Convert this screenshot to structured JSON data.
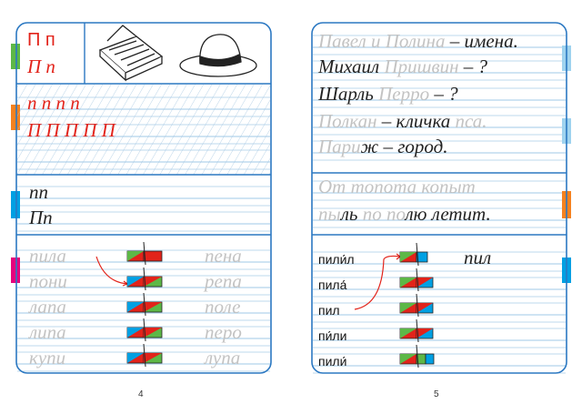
{
  "left_page": {
    "letter_box": {
      "print": "П п",
      "cursive": "П п"
    },
    "trace_rows": [
      "п п п п",
      "П П П П П"
    ],
    "pair_rows": [
      "пп",
      "Пп"
    ],
    "words_left": [
      "пила",
      "пони",
      "лапа",
      "липа",
      "купи"
    ],
    "words_right": [
      "пена",
      "репа",
      "поле",
      "перо",
      "лупа"
    ],
    "page_number": "4"
  },
  "right_page": {
    "sentences": [
      [
        {
          "text": "Павел и Полина",
          "traced": true
        },
        {
          "text": " – имена.",
          "traced": false
        }
      ],
      [
        {
          "text": "Михаил ",
          "traced": false
        },
        {
          "text": "Пришвин",
          "traced": true
        },
        {
          "text": " – ?",
          "traced": false
        }
      ],
      [
        {
          "text": "Шарль ",
          "traced": false
        },
        {
          "text": "Перро",
          "traced": true
        },
        {
          "text": " – ?",
          "traced": false
        }
      ],
      [
        {
          "text": "Полкан",
          "traced": true
        },
        {
          "text": " – кличка ",
          "traced": false
        },
        {
          "text": "пса.",
          "traced": true
        }
      ],
      [
        {
          "text": "Пари",
          "traced": true
        },
        {
          "text": "ж – город.",
          "traced": false
        }
      ]
    ],
    "poem": [
      [
        {
          "text": "От топота копыт",
          "traced": true
        }
      ],
      [
        {
          "text": "пы",
          "traced": true
        },
        {
          "text": "ль ",
          "traced": false
        },
        {
          "text": "по по",
          "traced": true
        },
        {
          "text": "лю летит.",
          "traced": false
        }
      ]
    ],
    "words": [
      "пили́л",
      "пила́",
      "пил",
      "пи́ли",
      "пили́"
    ],
    "answer": "пил",
    "page_number": "5"
  }
}
